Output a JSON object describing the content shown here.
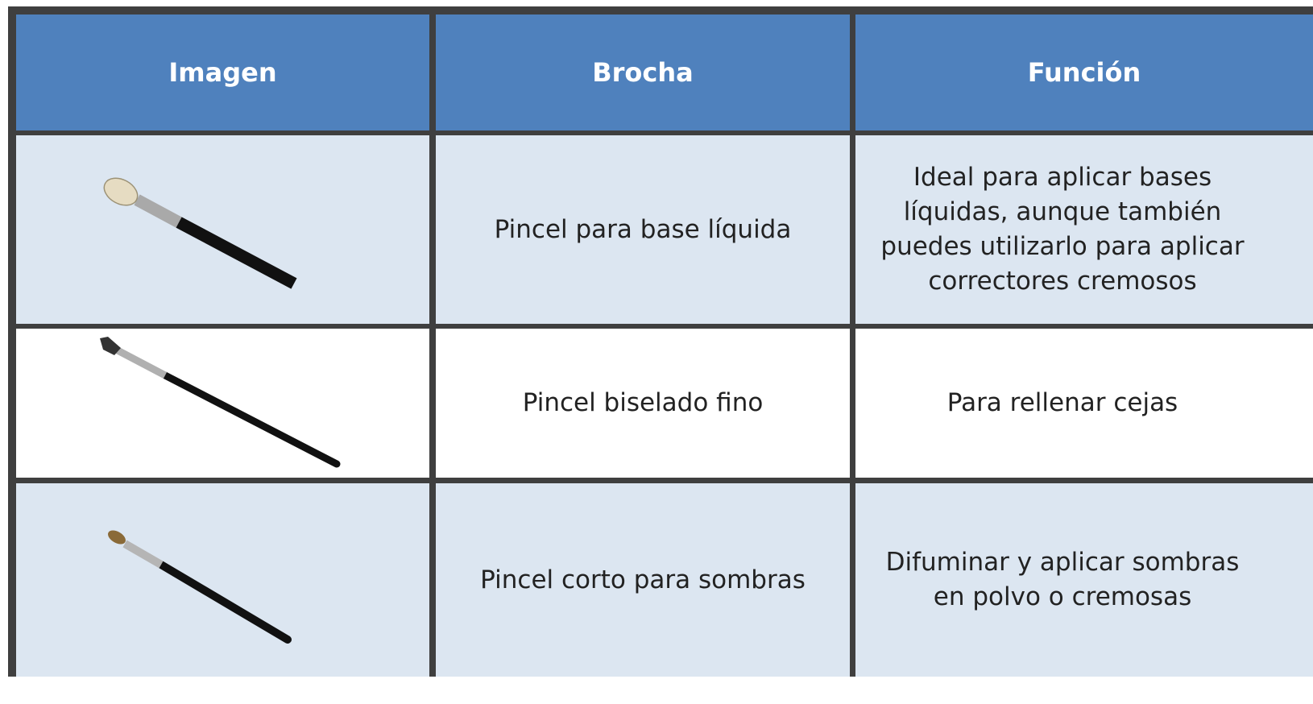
{
  "table": {
    "header": [
      "Imagen",
      "Brocha",
      "Función"
    ],
    "rows": [
      [
        "Pincel para base líquida",
        "Ideal para aplicar bases líquidas, aunque también puedes utilizarlo para aplicar correctores cremosos"
      ],
      [
        "Pincel biselado fino",
        "Para rellenar cejas"
      ],
      [
        "Pincel corto para sombras",
        "Difuminar y aplicar sombras en polvo o cremosas"
      ]
    ]
  }
}
